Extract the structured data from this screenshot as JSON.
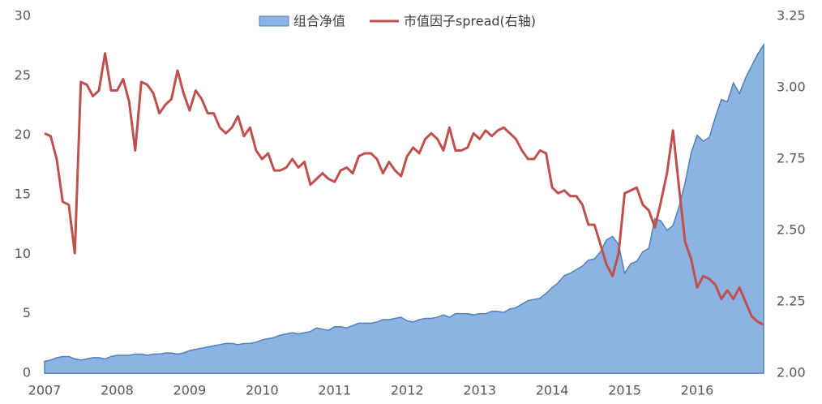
{
  "chart_data": {
    "type": "area-line",
    "categories": [
      "2007",
      null,
      null,
      null,
      null,
      null,
      null,
      null,
      null,
      null,
      null,
      null,
      "2008",
      null,
      null,
      null,
      null,
      null,
      null,
      null,
      null,
      null,
      null,
      null,
      "2009",
      null,
      null,
      null,
      null,
      null,
      null,
      null,
      null,
      null,
      null,
      null,
      "2010",
      null,
      null,
      null,
      null,
      null,
      null,
      null,
      null,
      null,
      null,
      null,
      "2011",
      null,
      null,
      null,
      null,
      null,
      null,
      null,
      null,
      null,
      null,
      null,
      "2012",
      null,
      null,
      null,
      null,
      null,
      null,
      null,
      null,
      null,
      null,
      null,
      "2013",
      null,
      null,
      null,
      null,
      null,
      null,
      null,
      null,
      null,
      null,
      null,
      "2014",
      null,
      null,
      null,
      null,
      null,
      null,
      null,
      null,
      null,
      null,
      null,
      "2015",
      null,
      null,
      null,
      null,
      null,
      null,
      null,
      null,
      null,
      null,
      null,
      "2016",
      null,
      null,
      null,
      null,
      null,
      null,
      null,
      null,
      null,
      null,
      null
    ],
    "series": [
      {
        "name": "组合净值",
        "type": "area",
        "color": "#8db3e2",
        "line_color": "#4f81bd",
        "axis": "y",
        "values": [
          1.0,
          1.1,
          1.3,
          1.4,
          1.4,
          1.2,
          1.1,
          1.2,
          1.3,
          1.3,
          1.2,
          1.4,
          1.5,
          1.5,
          1.5,
          1.6,
          1.6,
          1.5,
          1.6,
          1.6,
          1.7,
          1.7,
          1.6,
          1.7,
          1.9,
          2.0,
          2.1,
          2.2,
          2.3,
          2.4,
          2.5,
          2.5,
          2.4,
          2.5,
          2.5,
          2.6,
          2.8,
          2.9,
          3.0,
          3.2,
          3.3,
          3.4,
          3.3,
          3.4,
          3.5,
          3.8,
          3.7,
          3.6,
          3.9,
          3.9,
          3.8,
          4.0,
          4.2,
          4.2,
          4.2,
          4.3,
          4.5,
          4.5,
          4.6,
          4.7,
          4.4,
          4.3,
          4.5,
          4.6,
          4.6,
          4.7,
          4.9,
          4.7,
          5.0,
          5.0,
          5.0,
          4.9,
          5.0,
          5.0,
          5.2,
          5.2,
          5.1,
          5.4,
          5.5,
          5.8,
          6.1,
          6.2,
          6.3,
          6.7,
          7.2,
          7.6,
          8.2,
          8.4,
          8.7,
          9.0,
          9.5,
          9.6,
          10.2,
          11.2,
          11.5,
          10.8,
          8.4,
          9.2,
          9.4,
          10.2,
          10.5,
          13.0,
          12.8,
          12.0,
          12.4,
          14.0,
          16.0,
          18.5,
          20.0,
          19.5,
          19.8,
          21.5,
          23.0,
          22.8,
          24.4,
          23.5,
          24.8,
          25.8,
          26.8,
          27.6
        ]
      },
      {
        "name": "市值因子spread(右轴)",
        "type": "line",
        "color": "#c0504d",
        "axis": "y2",
        "values": [
          2.84,
          2.83,
          2.75,
          2.6,
          2.59,
          2.42,
          3.02,
          3.01,
          2.97,
          2.99,
          3.12,
          2.99,
          2.99,
          3.03,
          2.95,
          2.78,
          3.02,
          3.01,
          2.98,
          2.91,
          2.94,
          2.96,
          3.06,
          2.98,
          2.92,
          2.99,
          2.96,
          2.91,
          2.91,
          2.86,
          2.84,
          2.86,
          2.9,
          2.83,
          2.86,
          2.78,
          2.75,
          2.77,
          2.71,
          2.71,
          2.72,
          2.75,
          2.72,
          2.74,
          2.66,
          2.68,
          2.7,
          2.68,
          2.67,
          2.71,
          2.72,
          2.7,
          2.76,
          2.77,
          2.77,
          2.75,
          2.7,
          2.74,
          2.71,
          2.69,
          2.76,
          2.79,
          2.77,
          2.82,
          2.84,
          2.82,
          2.78,
          2.86,
          2.78,
          2.78,
          2.79,
          2.84,
          2.82,
          2.85,
          2.83,
          2.85,
          2.86,
          2.84,
          2.82,
          2.78,
          2.75,
          2.75,
          2.78,
          2.77,
          2.65,
          2.63,
          2.64,
          2.62,
          2.62,
          2.59,
          2.52,
          2.52,
          2.45,
          2.38,
          2.34,
          2.42,
          2.63,
          2.64,
          2.65,
          2.59,
          2.57,
          2.51,
          2.6,
          2.7,
          2.85,
          2.65,
          2.46,
          2.4,
          2.3,
          2.34,
          2.33,
          2.31,
          2.26,
          2.29,
          2.26,
          2.3,
          2.25,
          2.2,
          2.18,
          2.17
        ]
      }
    ],
    "ylim": [
      0,
      30
    ],
    "yticks": [
      0,
      5,
      10,
      15,
      20,
      25,
      30
    ],
    "y2lim": [
      2,
      3.25
    ],
    "y2ticks": [
      {
        "value": 2,
        "label": "2.00"
      },
      2.25,
      {
        "value": 2.5,
        "label": "2.50"
      },
      2.75,
      {
        "value": 3,
        "label": "3.00"
      },
      3.25
    ],
    "legend": "top"
  }
}
